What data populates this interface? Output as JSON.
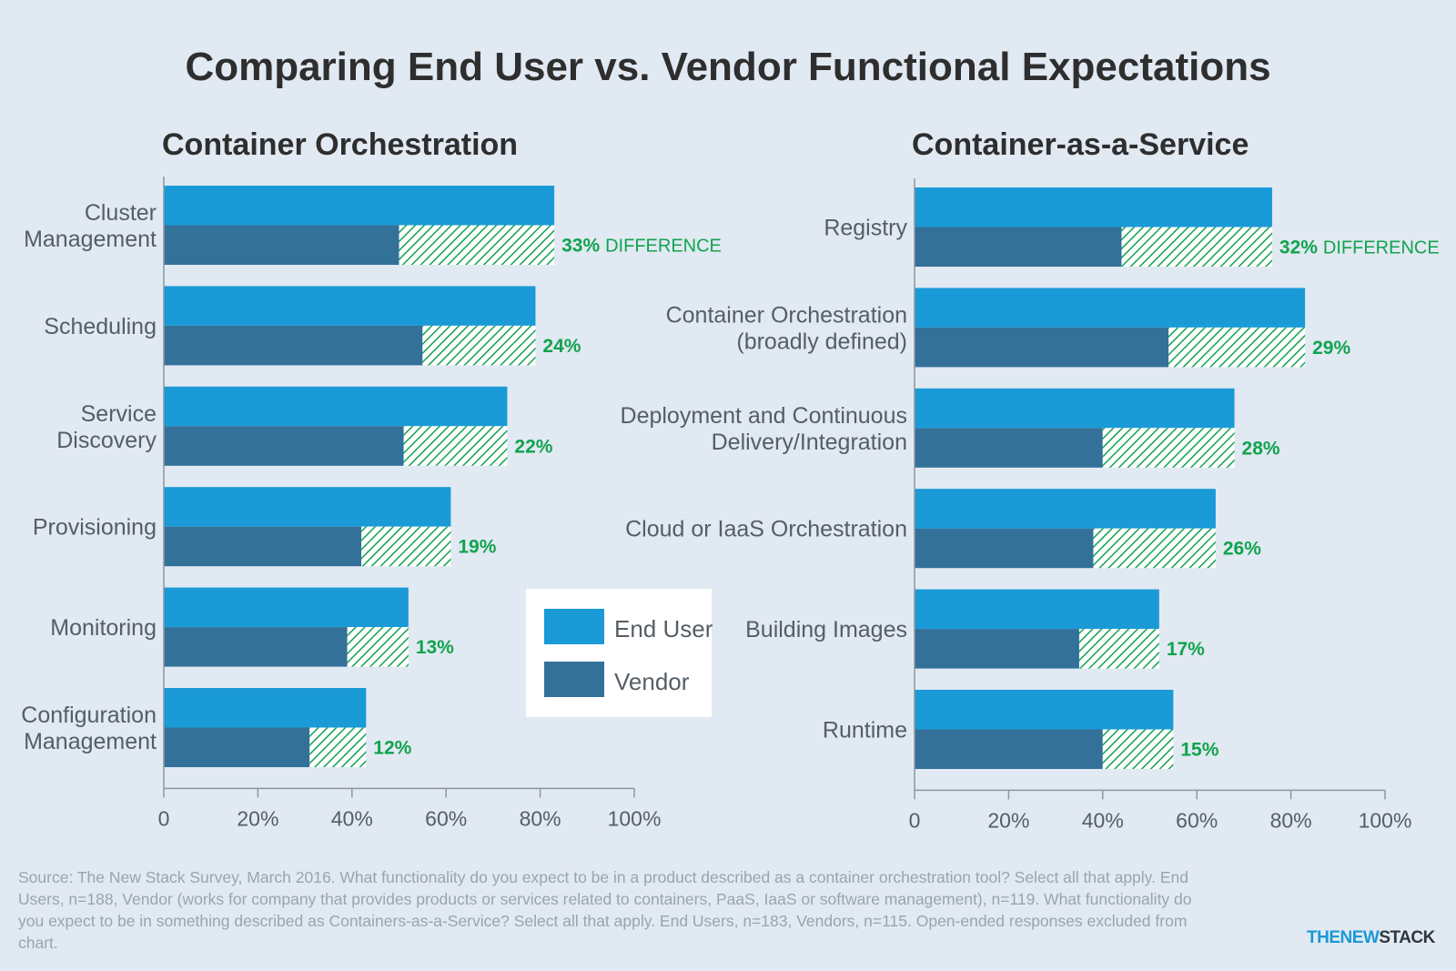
{
  "title": "Comparing End User vs. Vendor Functional Expectations",
  "legend": {
    "end_user": "End User",
    "vendor": "Vendor"
  },
  "difference_word": "DIFFERENCE",
  "colors": {
    "end_user": "#1a9ad7",
    "vendor": "#337199",
    "difference": "#11a34e",
    "background": "#e1e9f2"
  },
  "source": "Source: The New Stack Survey, March 2016. What functionality do you expect to be in a product described as a container orchestration tool? Select all that apply. End Users, n=188, Vendor (works for company that provides products or services related to containers, PaaS, IaaS or software management), n=119. What functionality do you expect to be in something described as Containers-as-a-Service? Select all that apply. End Users, n=183, Vendors, n=115. Open-ended responses excluded from chart.",
  "brand": {
    "part1": "THENEW",
    "part2": "STACK"
  },
  "chart_data": [
    {
      "type": "bar",
      "orientation": "horizontal",
      "title": "Container Orchestration",
      "categories": [
        [
          "Cluster",
          "Management"
        ],
        [
          "Scheduling"
        ],
        [
          "Service",
          "Discovery"
        ],
        [
          "Provisioning"
        ],
        [
          "Monitoring"
        ],
        [
          "Configuration",
          "Management"
        ]
      ],
      "series": [
        {
          "name": "End User",
          "values": [
            83,
            79,
            73,
            61,
            52,
            43
          ]
        },
        {
          "name": "Vendor",
          "values": [
            50,
            55,
            51,
            42,
            39,
            31
          ]
        }
      ],
      "difference_labels": [
        "33%",
        "24%",
        "22%",
        "19%",
        "13%",
        "12%"
      ],
      "xlim": [
        0,
        100
      ],
      "xticks": [
        "0",
        "20%",
        "40%",
        "60%",
        "80%",
        "100%"
      ]
    },
    {
      "type": "bar",
      "orientation": "horizontal",
      "title": "Container-as-a-Service",
      "categories": [
        [
          "Registry"
        ],
        [
          "Container Orchestration",
          "(broadly defined)"
        ],
        [
          "Deployment and Continuous",
          "Delivery/Integration"
        ],
        [
          "Cloud or IaaS Orchestration"
        ],
        [
          "Building Images"
        ],
        [
          "Runtime"
        ]
      ],
      "series": [
        {
          "name": "End User",
          "values": [
            76,
            83,
            68,
            64,
            52,
            55
          ]
        },
        {
          "name": "Vendor",
          "values": [
            44,
            54,
            40,
            38,
            35,
            40
          ]
        }
      ],
      "difference_labels": [
        "32%",
        "29%",
        "28%",
        "26%",
        "17%",
        "15%"
      ],
      "xlim": [
        0,
        100
      ],
      "xticks": [
        "0",
        "20%",
        "40%",
        "60%",
        "80%",
        "100%"
      ]
    }
  ]
}
